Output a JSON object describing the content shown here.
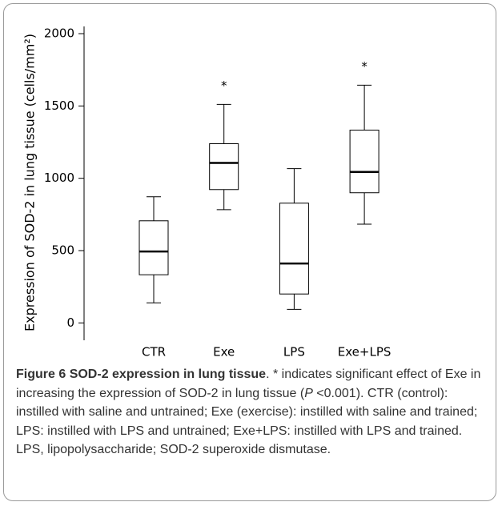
{
  "chart_data": {
    "type": "box",
    "ylabel": "Expression of SOD-2 in lung tissue (cells/mm²)",
    "categories": [
      "CTR",
      "Exe",
      "LPS",
      "Exe+LPS"
    ],
    "mins": [
      139,
      783,
      94,
      683
    ],
    "q1": [
      333,
      922,
      200,
      900
    ],
    "medians": [
      494,
      1106,
      411,
      1044
    ],
    "q3": [
      706,
      1239,
      828,
      1333
    ],
    "maxs": [
      872,
      1511,
      1067,
      1644
    ],
    "annotations": [
      null,
      "*",
      null,
      "*"
    ],
    "color": "#ffffff",
    "ylim": [
      -120,
      2050
    ],
    "yticks": [
      0,
      500,
      1000,
      1500,
      2000
    ]
  },
  "caption": {
    "figure": "Figure 6",
    "title": "SOD-2 expression in lung tissue",
    "body_1": ". * indicates significant effect of Exe in increasing the expression of SOD-2 in lung tissue (",
    "italic": "P",
    "body_2": " <0.001). CTR (control): instilled with saline and untrained; Exe (exercise): instilled with saline and trained; LPS: instilled with LPS and untrained; Exe+LPS: instilled with LPS and trained. LPS, lipopolysaccharide; SOD-2 superoxide dismutase."
  }
}
